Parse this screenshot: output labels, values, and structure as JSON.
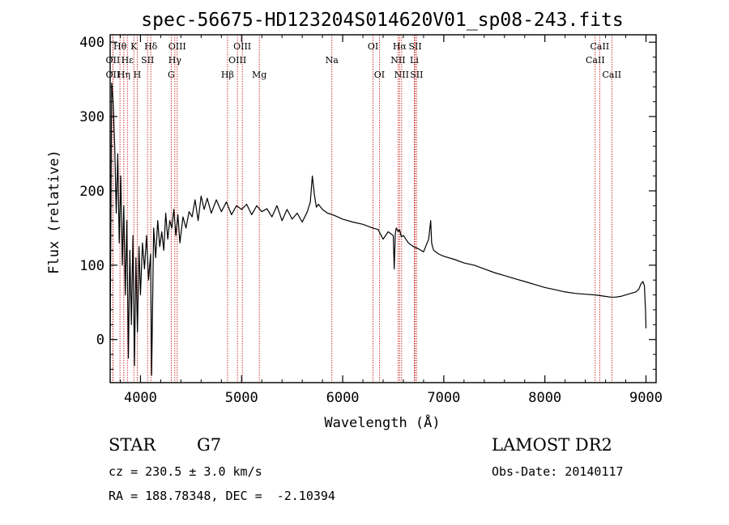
{
  "chart_data": {
    "type": "line",
    "title": "spec-56675-HD123204S014620V01_sp08-243.fits",
    "xlabel": "Wavelength (Å)",
    "ylabel": "Flux (relative)",
    "xlim": [
      3700,
      9100
    ],
    "ylim": [
      -58,
      410
    ],
    "xticks": [
      4000,
      5000,
      6000,
      7000,
      8000,
      9000
    ],
    "yticks": [
      0,
      100,
      200,
      300,
      400
    ],
    "series": [
      {
        "name": "spectrum",
        "x": [
          3700,
          3715,
          3730,
          3745,
          3760,
          3775,
          3790,
          3805,
          3820,
          3835,
          3850,
          3865,
          3880,
          3895,
          3910,
          3925,
          3940,
          3955,
          3970,
          3985,
          4000,
          4020,
          4040,
          4060,
          4080,
          4100,
          4110,
          4130,
          4150,
          4170,
          4190,
          4210,
          4230,
          4250,
          4270,
          4290,
          4310,
          4330,
          4350,
          4370,
          4390,
          4420,
          4450,
          4480,
          4510,
          4540,
          4570,
          4600,
          4630,
          4660,
          4700,
          4750,
          4800,
          4850,
          4900,
          4950,
          5000,
          5050,
          5100,
          5150,
          5200,
          5250,
          5300,
          5350,
          5400,
          5450,
          5500,
          5550,
          5600,
          5650,
          5680,
          5700,
          5720,
          5740,
          5760,
          5800,
          5850,
          5900,
          5950,
          6000,
          6100,
          6200,
          6300,
          6350,
          6400,
          6450,
          6500,
          6510,
          6520,
          6530,
          6550,
          6563,
          6580,
          6600,
          6650,
          6700,
          6750,
          6800,
          6850,
          6870,
          6880,
          6890,
          6900,
          6950,
          7000,
          7100,
          7200,
          7300,
          7400,
          7500,
          7600,
          7700,
          7800,
          7900,
          8000,
          8100,
          8200,
          8300,
          8400,
          8500,
          8600,
          8650,
          8700,
          8750,
          8800,
          8850,
          8900,
          8930,
          8950,
          8970,
          8985,
          8995,
          9000
        ],
        "y": [
          0,
          345,
          320,
          260,
          170,
          250,
          130,
          220,
          100,
          180,
          60,
          160,
          -25,
          120,
          20,
          140,
          -35,
          110,
          10,
          125,
          60,
          130,
          95,
          140,
          80,
          115,
          -48,
          150,
          110,
          160,
          125,
          145,
          120,
          170,
          135,
          160,
          150,
          175,
          140,
          168,
          130,
          165,
          150,
          172,
          165,
          188,
          160,
          193,
          175,
          190,
          170,
          188,
          172,
          185,
          168,
          180,
          175,
          182,
          168,
          180,
          172,
          176,
          165,
          180,
          160,
          175,
          162,
          170,
          158,
          172,
          185,
          220,
          195,
          178,
          182,
          175,
          170,
          168,
          165,
          162,
          158,
          155,
          150,
          148,
          135,
          145,
          140,
          95,
          142,
          150,
          145,
          148,
          138,
          140,
          130,
          125,
          122,
          118,
          135,
          160,
          130,
          124,
          120,
          115,
          112,
          108,
          103,
          100,
          95,
          90,
          86,
          82,
          78,
          74,
          70,
          67,
          64,
          62,
          61,
          60,
          58,
          57,
          57,
          58,
          60,
          62,
          64,
          68,
          75,
          78,
          72,
          40,
          15
        ]
      }
    ],
    "line_markers": [
      {
        "label": "Hθ",
        "x": 3797,
        "row": 0
      },
      {
        "label": "OII",
        "x": 3727,
        "row": 1
      },
      {
        "label": "OII",
        "x": 3727,
        "row": 2
      },
      {
        "label": "Hε",
        "x": 3870,
        "row": 1
      },
      {
        "label": "Hη",
        "x": 3835,
        "row": 2
      },
      {
        "label": "K",
        "x": 3934,
        "row": 0
      },
      {
        "label": "SII",
        "x": 4070,
        "row": 1
      },
      {
        "label": "H",
        "x": 3968,
        "row": 2
      },
      {
        "label": "Hδ",
        "x": 4102,
        "row": 0
      },
      {
        "label": "OIII",
        "x": 4363,
        "row": 0
      },
      {
        "label": "Hγ",
        "x": 4340,
        "row": 1
      },
      {
        "label": "G",
        "x": 4304,
        "row": 2
      },
      {
        "label": "Hβ",
        "x": 4861,
        "row": 2
      },
      {
        "label": "OIII",
        "x": 5007,
        "row": 0
      },
      {
        "label": "OIII",
        "x": 4959,
        "row": 1
      },
      {
        "label": "Mg",
        "x": 5175,
        "row": 2
      },
      {
        "label": "Na",
        "x": 5893,
        "row": 1
      },
      {
        "label": "OI",
        "x": 6300,
        "row": 0
      },
      {
        "label": "OI",
        "x": 6363,
        "row": 2
      },
      {
        "label": "Hα",
        "x": 6563,
        "row": 0
      },
      {
        "label": "NII",
        "x": 6548,
        "row": 1
      },
      {
        "label": "NII",
        "x": 6583,
        "row": 2
      },
      {
        "label": "SII",
        "x": 6717,
        "row": 0
      },
      {
        "label": "Li",
        "x": 6708,
        "row": 1
      },
      {
        "label": "SII",
        "x": 6731,
        "row": 2
      },
      {
        "label": "CaII",
        "x": 8542,
        "row": 0
      },
      {
        "label": "CaII",
        "x": 8498,
        "row": 1
      },
      {
        "label": "CaII",
        "x": 8662,
        "row": 2
      }
    ]
  },
  "info": {
    "object_type": "STAR",
    "subclass": "G7",
    "survey": "LAMOST DR2",
    "cz": "cz = 230.5 ± 3.0 km/s",
    "obs_date": "Obs-Date: 20140117",
    "coords": "RA = 188.78348, DEC =  -2.10394"
  },
  "colors": {
    "axis": "#000000",
    "spectrum": "#000000",
    "marker_line": "#c00000"
  }
}
